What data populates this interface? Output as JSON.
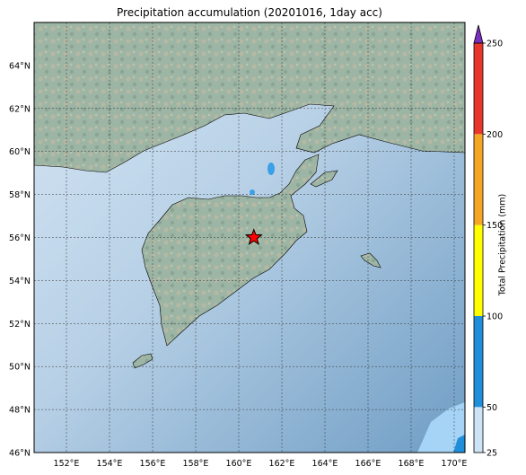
{
  "title": "Precipitation accumulation (20201016, 1day acc)",
  "map": {
    "lat_labels": [
      "64°N",
      "62°N",
      "60°N",
      "58°N",
      "56°N",
      "54°N",
      "52°N",
      "50°N",
      "48°N",
      "46°N"
    ],
    "lon_labels": [
      "152°E",
      "154°E",
      "156°E",
      "158°E",
      "160°E",
      "162°E",
      "164°E",
      "166°E",
      "168°E",
      "170°E"
    ],
    "extent": {
      "lon_min": 150.5,
      "lon_max": 170.5,
      "lat_min": 46,
      "lat_max": 66
    },
    "marker": {
      "name": "star",
      "lon": 160.7,
      "lat": 56.0,
      "color": "#ff0000"
    },
    "ocean_color": "#7fa8cc",
    "land_color": "#9fb6a6"
  },
  "colorbar": {
    "label": "Total Precipitation (mm)",
    "ticks": [
      "25",
      "50",
      "100",
      "150",
      "200",
      "250"
    ],
    "colors": [
      "#cde3f6",
      "#1f8fdc",
      "#ffff00",
      "#f5a623",
      "#e8362a",
      "#7b2fbe"
    ]
  }
}
